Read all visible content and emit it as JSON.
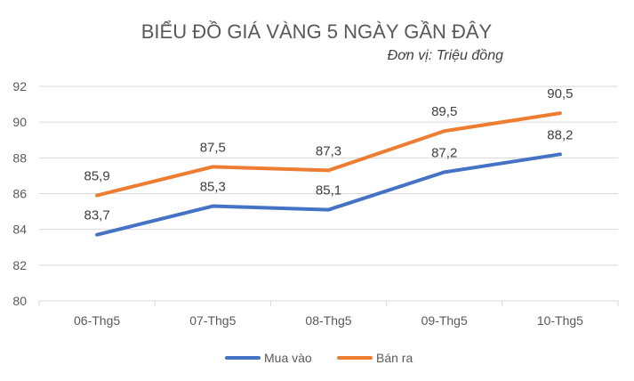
{
  "chart_data": {
    "type": "line",
    "title": "BIỂU ĐỒ GIÁ VÀNG 5 NGÀY GẦN ĐÂY",
    "subtitle": "Đơn vị: Triệu đồng",
    "categories": [
      "06-Thg5",
      "07-Thg5",
      "08-Thg5",
      "09-Thg5",
      "10-Thg5"
    ],
    "series": [
      {
        "name": "Mua vào",
        "values": [
          83.7,
          85.3,
          85.1,
          87.2,
          88.2
        ],
        "labels": [
          "83,7",
          "85,3",
          "85,1",
          "87,2",
          "88,2"
        ],
        "color": "#4472C4"
      },
      {
        "name": "Bán ra",
        "values": [
          85.9,
          87.5,
          87.3,
          89.5,
          90.5
        ],
        "labels": [
          "85,9",
          "87,5",
          "87,3",
          "89,5",
          "90,5"
        ],
        "color": "#ED7D31"
      }
    ],
    "ylim": [
      80,
      92
    ],
    "yticks": [
      80,
      82,
      84,
      86,
      88,
      90,
      92
    ],
    "grid": true,
    "legend": "bottom",
    "colors": {
      "grid": "#D9D9D9",
      "text": "#595959"
    }
  }
}
